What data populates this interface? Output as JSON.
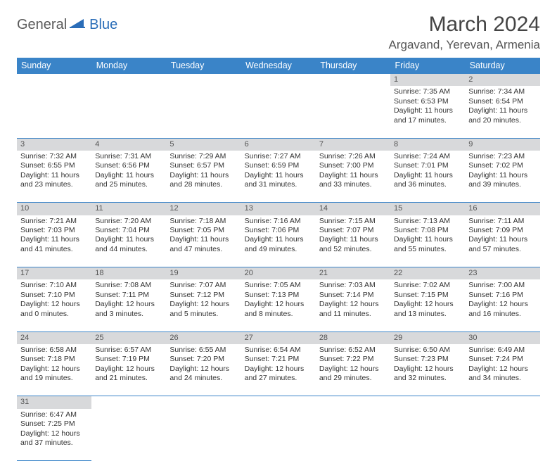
{
  "logo": {
    "text1": "General",
    "text2": "Blue"
  },
  "title": "March 2024",
  "location": "Argavand, Yerevan, Armenia",
  "colors": {
    "header_bg": "#3a84c8",
    "header_text": "#ffffff",
    "daynum_bg": "#d8d9db",
    "row_border": "#3a84c8",
    "body_text": "#333333",
    "logo_gray": "#5a5a5a",
    "logo_blue": "#2a6db8"
  },
  "day_headers": [
    "Sunday",
    "Monday",
    "Tuesday",
    "Wednesday",
    "Thursday",
    "Friday",
    "Saturday"
  ],
  "weeks": [
    {
      "nums": [
        "",
        "",
        "",
        "",
        "",
        "1",
        "2"
      ],
      "cells": [
        null,
        null,
        null,
        null,
        null,
        {
          "sr": "7:35 AM",
          "ss": "6:53 PM",
          "dl": "11 hours and 17 minutes."
        },
        {
          "sr": "7:34 AM",
          "ss": "6:54 PM",
          "dl": "11 hours and 20 minutes."
        }
      ]
    },
    {
      "nums": [
        "3",
        "4",
        "5",
        "6",
        "7",
        "8",
        "9"
      ],
      "cells": [
        {
          "sr": "7:32 AM",
          "ss": "6:55 PM",
          "dl": "11 hours and 23 minutes."
        },
        {
          "sr": "7:31 AM",
          "ss": "6:56 PM",
          "dl": "11 hours and 25 minutes."
        },
        {
          "sr": "7:29 AM",
          "ss": "6:57 PM",
          "dl": "11 hours and 28 minutes."
        },
        {
          "sr": "7:27 AM",
          "ss": "6:59 PM",
          "dl": "11 hours and 31 minutes."
        },
        {
          "sr": "7:26 AM",
          "ss": "7:00 PM",
          "dl": "11 hours and 33 minutes."
        },
        {
          "sr": "7:24 AM",
          "ss": "7:01 PM",
          "dl": "11 hours and 36 minutes."
        },
        {
          "sr": "7:23 AM",
          "ss": "7:02 PM",
          "dl": "11 hours and 39 minutes."
        }
      ]
    },
    {
      "nums": [
        "10",
        "11",
        "12",
        "13",
        "14",
        "15",
        "16"
      ],
      "cells": [
        {
          "sr": "7:21 AM",
          "ss": "7:03 PM",
          "dl": "11 hours and 41 minutes."
        },
        {
          "sr": "7:20 AM",
          "ss": "7:04 PM",
          "dl": "11 hours and 44 minutes."
        },
        {
          "sr": "7:18 AM",
          "ss": "7:05 PM",
          "dl": "11 hours and 47 minutes."
        },
        {
          "sr": "7:16 AM",
          "ss": "7:06 PM",
          "dl": "11 hours and 49 minutes."
        },
        {
          "sr": "7:15 AM",
          "ss": "7:07 PM",
          "dl": "11 hours and 52 minutes."
        },
        {
          "sr": "7:13 AM",
          "ss": "7:08 PM",
          "dl": "11 hours and 55 minutes."
        },
        {
          "sr": "7:11 AM",
          "ss": "7:09 PM",
          "dl": "11 hours and 57 minutes."
        }
      ]
    },
    {
      "nums": [
        "17",
        "18",
        "19",
        "20",
        "21",
        "22",
        "23"
      ],
      "cells": [
        {
          "sr": "7:10 AM",
          "ss": "7:10 PM",
          "dl": "12 hours and 0 minutes."
        },
        {
          "sr": "7:08 AM",
          "ss": "7:11 PM",
          "dl": "12 hours and 3 minutes."
        },
        {
          "sr": "7:07 AM",
          "ss": "7:12 PM",
          "dl": "12 hours and 5 minutes."
        },
        {
          "sr": "7:05 AM",
          "ss": "7:13 PM",
          "dl": "12 hours and 8 minutes."
        },
        {
          "sr": "7:03 AM",
          "ss": "7:14 PM",
          "dl": "12 hours and 11 minutes."
        },
        {
          "sr": "7:02 AM",
          "ss": "7:15 PM",
          "dl": "12 hours and 13 minutes."
        },
        {
          "sr": "7:00 AM",
          "ss": "7:16 PM",
          "dl": "12 hours and 16 minutes."
        }
      ]
    },
    {
      "nums": [
        "24",
        "25",
        "26",
        "27",
        "28",
        "29",
        "30"
      ],
      "cells": [
        {
          "sr": "6:58 AM",
          "ss": "7:18 PM",
          "dl": "12 hours and 19 minutes."
        },
        {
          "sr": "6:57 AM",
          "ss": "7:19 PM",
          "dl": "12 hours and 21 minutes."
        },
        {
          "sr": "6:55 AM",
          "ss": "7:20 PM",
          "dl": "12 hours and 24 minutes."
        },
        {
          "sr": "6:54 AM",
          "ss": "7:21 PM",
          "dl": "12 hours and 27 minutes."
        },
        {
          "sr": "6:52 AM",
          "ss": "7:22 PM",
          "dl": "12 hours and 29 minutes."
        },
        {
          "sr": "6:50 AM",
          "ss": "7:23 PM",
          "dl": "12 hours and 32 minutes."
        },
        {
          "sr": "6:49 AM",
          "ss": "7:24 PM",
          "dl": "12 hours and 34 minutes."
        }
      ]
    },
    {
      "nums": [
        "31",
        "",
        "",
        "",
        "",
        "",
        ""
      ],
      "cells": [
        {
          "sr": "6:47 AM",
          "ss": "7:25 PM",
          "dl": "12 hours and 37 minutes."
        },
        null,
        null,
        null,
        null,
        null,
        null
      ]
    }
  ],
  "labels": {
    "sunrise": "Sunrise: ",
    "sunset": "Sunset: ",
    "daylight": "Daylight: "
  }
}
